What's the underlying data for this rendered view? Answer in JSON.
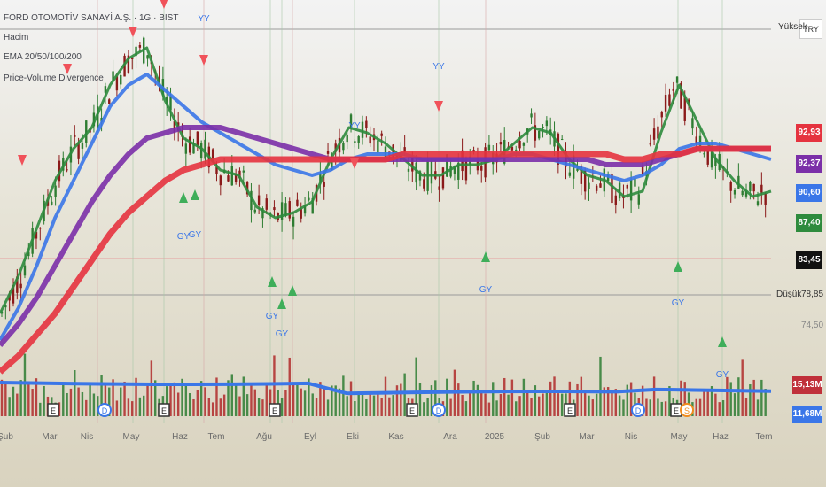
{
  "legend": {
    "title": "FORD OTOMOTİV SANAYİ A.Ş. · 1G · BIST",
    "volume": "Hacim",
    "ema": "EMA 20/50/100/200",
    "divergence": "Price-Volume Divergence"
  },
  "currency": "TRY",
  "price_labels": [
    {
      "text": "92,93",
      "color": "#e5333f"
    },
    {
      "text": "92,37",
      "color": "#7b2fa8"
    },
    {
      "text": "90,60",
      "color": "#3a76e8"
    },
    {
      "text": "87,40",
      "color": "#2e8b3d"
    },
    {
      "text": "83,45",
      "color": "#111111"
    },
    {
      "text": "15,13M",
      "color": "#c0303a"
    },
    {
      "text": "11,68M",
      "color": "#3a76e8"
    }
  ],
  "side_labels": {
    "high_word": "Yüksek",
    "low_word": "Düşük",
    "low_value": "78,85",
    "tick": "74,50"
  },
  "x_axis": [
    "Şub",
    "Mar",
    "Nis",
    "May",
    "Haz",
    "Tem",
    "Ağu",
    "Eyl",
    "Eki",
    "Kas",
    "Ara",
    "2025",
    "Şub",
    "Mar",
    "Nis",
    "May",
    "Haz",
    "Tem"
  ],
  "markers": {
    "buy": "GY",
    "sell": "YY",
    "earnings": "E",
    "dividend": "D",
    "split": "S"
  },
  "chart_data": {
    "type": "line",
    "title": "FORD OTOMOTİV SANAYİ A.Ş. · 1G · BIST",
    "y_ticks": [
      "92,93",
      "92,37",
      "90,60",
      "87,40",
      "83,45",
      "78,85",
      "74,50"
    ],
    "series": [
      {
        "name": "EMA 20",
        "color": "#2e8b3d",
        "values": [
          61,
          68,
          77,
          86,
          92,
          96,
          104,
          109,
          111,
          101,
          94,
          92,
          88,
          87,
          81,
          79,
          80,
          82,
          90,
          96,
          95,
          93,
          90,
          87,
          87,
          89,
          89,
          90,
          93,
          96,
          95,
          90,
          87,
          86,
          83,
          84,
          95,
          104,
          97,
          90,
          86,
          83,
          84
        ]
      },
      {
        "name": "EMA 50",
        "color": "#3a76e8",
        "values": [
          56,
          62,
          70,
          79,
          86,
          93,
          100,
          104,
          106,
          103,
          100,
          97,
          95,
          93,
          91,
          89,
          88,
          87,
          88,
          90,
          91,
          91,
          91,
          90,
          90,
          90,
          90,
          90,
          91,
          91,
          90,
          89,
          88,
          87,
          86,
          87,
          89,
          92,
          93,
          93,
          92,
          91,
          90
        ]
      },
      {
        "name": "EMA 100",
        "color": "#7b2fa8",
        "values": [
          55,
          59,
          64,
          70,
          76,
          82,
          87,
          91,
          94,
          95,
          96,
          96,
          96,
          95,
          94,
          93,
          92,
          91,
          90,
          90,
          90,
          90,
          90,
          90,
          90,
          90,
          90,
          90,
          90,
          90,
          90,
          90,
          90,
          89,
          89,
          89,
          90,
          91,
          92,
          92,
          92,
          92,
          92
        ]
      },
      {
        "name": "EMA 200",
        "color": "#e5333f",
        "values": [
          50,
          53,
          57,
          61,
          66,
          71,
          76,
          80,
          83,
          86,
          88,
          89,
          90,
          90,
          90,
          90,
          90,
          90,
          90,
          90,
          90,
          90,
          91,
          91,
          91,
          91,
          91,
          91,
          91,
          91,
          91,
          91,
          91,
          91,
          90,
          90,
          91,
          91,
          92,
          92,
          92,
          92,
          92
        ]
      }
    ]
  }
}
